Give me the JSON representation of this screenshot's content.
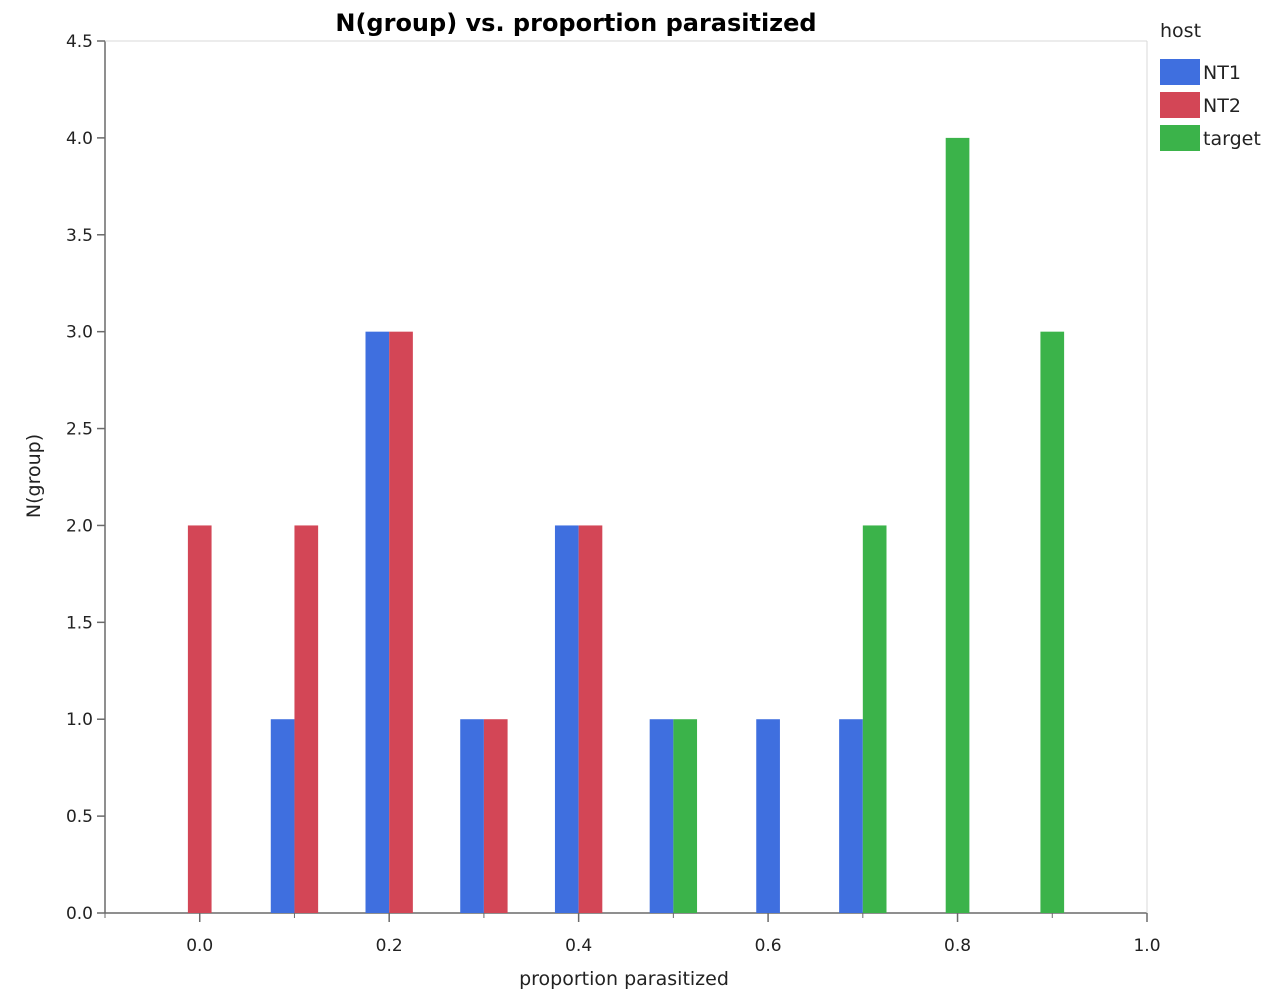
{
  "chart_data": {
    "type": "bar",
    "title": "N(group) vs. proportion parasitized",
    "xlabel": "proportion parasitized",
    "ylabel": "N(group)",
    "xlim": [
      -0.1,
      1.0
    ],
    "ylim": [
      0,
      4.5
    ],
    "xticks": [
      "0.0",
      "0.2",
      "0.4",
      "0.6",
      "0.8",
      "1.0"
    ],
    "yticks": [
      "0.0",
      "0.5",
      "1.0",
      "1.5",
      "2.0",
      "2.5",
      "3.0",
      "3.5",
      "4.0",
      "4.5"
    ],
    "bin_width": 0.1,
    "bin_starts": [
      -0.05,
      0.05,
      0.15,
      0.25,
      0.35,
      0.45,
      0.55,
      0.65,
      0.75,
      0.85
    ],
    "grid": false,
    "legend": {
      "title": "host",
      "position": "right"
    },
    "series": [
      {
        "name": "NT1",
        "color": "#3f6fdf",
        "values": [
          0,
          1,
          3,
          1,
          2,
          1,
          1,
          1,
          0,
          0
        ]
      },
      {
        "name": "NT2",
        "color": "#d34656",
        "values": [
          2,
          2,
          3,
          1,
          2,
          0,
          0,
          0,
          0,
          0
        ]
      },
      {
        "name": "target",
        "color": "#3bb34a",
        "values": [
          0,
          0,
          0,
          0,
          0,
          1,
          0,
          2,
          4,
          3
        ]
      }
    ]
  }
}
